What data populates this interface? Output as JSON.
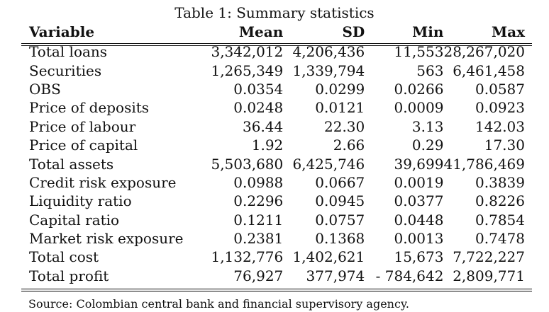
{
  "caption": "Table 1: Summary statistics",
  "headers": [
    "Variable",
    "Mean",
    "SD",
    "Min",
    "Max"
  ],
  "rows": [
    [
      "Total loans",
      "3,342,012",
      "4,206,436",
      "11,553",
      "28,267,020"
    ],
    [
      "Securities",
      "1,265,349",
      "1,339,794",
      "563",
      "6,461,458"
    ],
    [
      "OBS",
      "0.0354",
      "0.0299",
      "0.0266",
      "0.0587"
    ],
    [
      "Price of deposits",
      "0.0248",
      "0.0121",
      "0.0009",
      "0.0923"
    ],
    [
      "Price of labour",
      "36.44",
      "22.30",
      "3.13",
      "142.03"
    ],
    [
      "Price of capital",
      "1.92",
      "2.66",
      "0.29",
      "17.30"
    ],
    [
      "Total assets",
      "5,503,680",
      "6,425,746",
      "39,699",
      "41,786,469"
    ],
    [
      "Credit risk exposure",
      "0.0988",
      "0.0667",
      "0.0019",
      "0.3839"
    ],
    [
      "Liquidity ratio",
      "0.2296",
      "0.0945",
      "0.0377",
      "0.8226"
    ],
    [
      "Capital ratio",
      "0.1211",
      "0.0757",
      "0.0448",
      "0.7854"
    ],
    [
      "Market risk exposure",
      "0.2381",
      "0.1368",
      "0.0013",
      "0.7478"
    ],
    [
      "Total cost",
      "1,132,776",
      "1,402,621",
      "15,673",
      "7,722,227"
    ],
    [
      "Total profit",
      "76,927",
      "377,974",
      "- 784,642",
      "2,809,771"
    ]
  ],
  "source": "Source: Colombian central bank and financial supervisory agency."
}
